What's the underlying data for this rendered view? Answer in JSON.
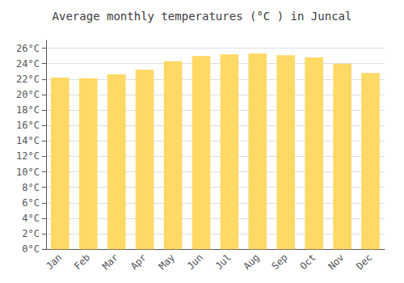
{
  "chart_data": {
    "type": "bar",
    "title": "Average monthly temperatures (°C ) in Juncal",
    "categories": [
      "Jan",
      "Feb",
      "Mar",
      "Apr",
      "May",
      "Jun",
      "Jul",
      "Aug",
      "Sep",
      "Oct",
      "Nov",
      "Dec"
    ],
    "values": [
      22.2,
      22.1,
      22.6,
      23.2,
      24.3,
      25.0,
      25.2,
      25.3,
      25.1,
      24.8,
      24.0,
      22.8
    ],
    "color": "#FFD966",
    "ylim": [
      0,
      27
    ],
    "yticks": [
      {
        "value": 0,
        "label": "0°C"
      },
      {
        "value": 2,
        "label": "2°C"
      },
      {
        "value": 4,
        "label": "4°C"
      },
      {
        "value": 6,
        "label": "6°C"
      },
      {
        "value": 8,
        "label": "8°C"
      },
      {
        "value": 10,
        "label": "10°C"
      },
      {
        "value": 12,
        "label": "12°C"
      },
      {
        "value": 14,
        "label": "14°C"
      },
      {
        "value": 16,
        "label": "16°C"
      },
      {
        "value": 18,
        "label": "18°C"
      },
      {
        "value": 20,
        "label": "20°C"
      },
      {
        "value": 22,
        "label": "22°C"
      },
      {
        "value": 24,
        "label": "24°C"
      },
      {
        "value": 26,
        "label": "26°C"
      }
    ],
    "grid": true
  }
}
